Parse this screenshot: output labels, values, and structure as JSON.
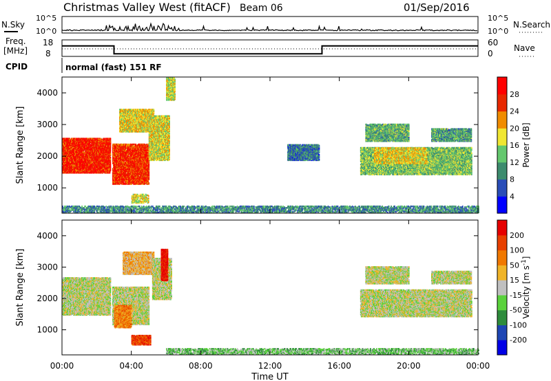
{
  "header": {
    "title": "Christmas Valley West (fitACF)",
    "beam": "Beam 06",
    "date": "01/Sep/2016"
  },
  "status_panels": {
    "nsky": {
      "label": "N.Sky",
      "ticks": [
        "10^5",
        "10^0"
      ]
    },
    "nsearch": {
      "label": "N.Search",
      "ticks": [
        "10^5",
        "10^0"
      ]
    },
    "freq": {
      "label_top": "Freq.",
      "label_bottom": "[MHz]",
      "ticks": [
        "18",
        "8"
      ],
      "segments": [
        {
          "from": 0,
          "to": 3,
          "value": 14.4
        },
        {
          "from": 3,
          "to": 15,
          "value": 8.8
        },
        {
          "from": 15,
          "to": 24,
          "value": 14.4
        }
      ]
    },
    "nave": {
      "label": "Nave",
      "ticks": [
        "60",
        "0"
      ]
    },
    "cpid": {
      "label": "CPID",
      "program": "normal (fast) 151 RF"
    }
  },
  "chart_data": [
    {
      "type": "heatmap",
      "name": "power",
      "ylabel": "Slant Range [km]",
      "yticks": [
        1000,
        2000,
        3000,
        4000
      ],
      "ylim": [
        200,
        4500
      ],
      "xlim": [
        0,
        24
      ],
      "colorbar": {
        "label": "Power [dB]",
        "ticks": [
          "4",
          "8",
          "12",
          "16",
          "20",
          "24",
          "28"
        ],
        "colors": [
          "#0000ff",
          "#2a4db8",
          "#3d8c6e",
          "#64c86e",
          "#f0e632",
          "#f08c00",
          "#e82800",
          "#ff0000"
        ]
      },
      "regions": [
        {
          "t0": 0.0,
          "t1": 2.8,
          "r0": 1500,
          "r1": 2600,
          "level": 6.4
        },
        {
          "t0": 2.9,
          "t1": 5.0,
          "r0": 1150,
          "r1": 2400,
          "level": 6.2
        },
        {
          "t0": 3.3,
          "t1": 5.3,
          "r0": 2800,
          "r1": 3500,
          "level": 4.2
        },
        {
          "t0": 5.0,
          "t1": 6.2,
          "r0": 1900,
          "r1": 3300,
          "level": 4.0
        },
        {
          "t0": 6.0,
          "t1": 6.5,
          "r0": 3800,
          "r1": 4500,
          "level": 3.8
        },
        {
          "t0": 4.0,
          "t1": 5.0,
          "r0": 550,
          "r1": 820,
          "level": 3.8
        },
        {
          "t0": 17.2,
          "t1": 23.6,
          "r0": 1450,
          "r1": 2300,
          "level": 3.0
        },
        {
          "t0": 18.0,
          "t1": 21.0,
          "r0": 1800,
          "r1": 2300,
          "level": 4.2
        },
        {
          "t0": 17.5,
          "t1": 20.0,
          "r0": 2500,
          "r1": 3050,
          "level": 2.6
        },
        {
          "t0": 21.3,
          "t1": 23.6,
          "r0": 2500,
          "r1": 2900,
          "level": 2.4
        },
        {
          "t0": 13.0,
          "t1": 14.8,
          "r0": 1900,
          "r1": 2400,
          "level": 1.6
        },
        {
          "t0": 0.0,
          "t1": 24.0,
          "r0": 250,
          "r1": 450,
          "level": 2.0
        }
      ]
    },
    {
      "type": "heatmap",
      "name": "velocity",
      "ylabel": "Slant Range [km]",
      "xlabel": "Time UT",
      "xticks": [
        "00:00",
        "04:00",
        "08:00",
        "12:00",
        "16:00",
        "20:00",
        "00:00"
      ],
      "yticks": [
        1000,
        2000,
        3000,
        4000
      ],
      "ylim": [
        200,
        4500
      ],
      "xlim": [
        0,
        24
      ],
      "colorbar": {
        "label": "Velocity [m s^-1]",
        "ticks": [
          "200",
          "100",
          "50",
          "15",
          "-15",
          "-50",
          "-100",
          "-200"
        ],
        "colors": [
          "#0000e6",
          "#1e46b4",
          "#2e8c3c",
          "#5ad23c",
          "#c0c0c0",
          "#f0b428",
          "#f07800",
          "#e84000",
          "#e60000"
        ]
      },
      "regions": [
        {
          "t0": 0.0,
          "t1": 2.8,
          "r0": 1500,
          "r1": 2700,
          "level": 4
        },
        {
          "t0": 2.9,
          "t1": 5.0,
          "r0": 1200,
          "r1": 2400,
          "level": 4
        },
        {
          "t0": 3.0,
          "t1": 4.0,
          "r0": 1100,
          "r1": 1800,
          "level": 6
        },
        {
          "t0": 3.5,
          "t1": 5.3,
          "r0": 2800,
          "r1": 3500,
          "level": 5
        },
        {
          "t0": 5.2,
          "t1": 6.3,
          "r0": 2000,
          "r1": 3300,
          "level": 4
        },
        {
          "t0": 5.7,
          "t1": 6.1,
          "r0": 2600,
          "r1": 3600,
          "level": 8
        },
        {
          "t0": 4.0,
          "t1": 5.1,
          "r0": 550,
          "r1": 850,
          "level": 7
        },
        {
          "t0": 17.2,
          "t1": 23.6,
          "r0": 1450,
          "r1": 2300,
          "level": 4
        },
        {
          "t0": 17.5,
          "t1": 20.0,
          "r0": 2500,
          "r1": 3050,
          "level": 4
        },
        {
          "t0": 21.3,
          "t1": 23.6,
          "r0": 2500,
          "r1": 2900,
          "level": 4
        },
        {
          "t0": 6.0,
          "t1": 24.0,
          "r0": 250,
          "r1": 420,
          "level": 3
        }
      ]
    }
  ]
}
